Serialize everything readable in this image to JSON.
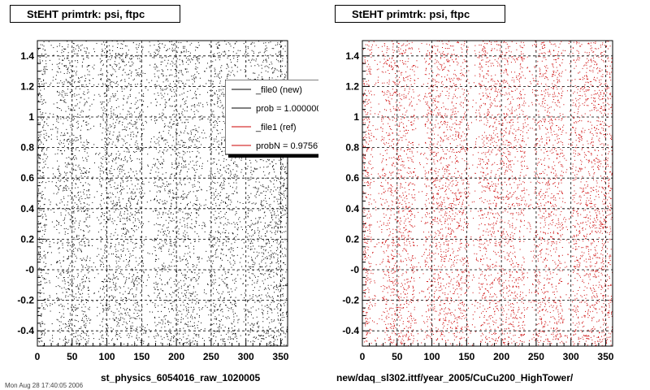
{
  "stamp": "Mon Aug 28 17:40:05 2006",
  "chart_data": [
    {
      "type": "scatter",
      "title": "StEHT primtrk: psi, ftpc",
      "xlabel": "st_physics_6054016_raw_1020005",
      "ylabel": "",
      "xlim": [
        0,
        360
      ],
      "ylim": [
        -0.5,
        1.5
      ],
      "x_ticks": [
        0,
        50,
        100,
        150,
        200,
        250,
        300,
        350
      ],
      "y_ticks": [
        -0.4,
        -0.2,
        -0.0,
        0.2,
        0.4,
        0.6,
        0.8,
        1,
        1.2,
        1.4
      ],
      "x_tick_labels": [
        "0",
        "50",
        "100",
        "150",
        "200",
        "250",
        "300",
        "350"
      ],
      "y_tick_labels": [
        "-0.4",
        "-0.2",
        "-0",
        "0.2",
        "0.4",
        "0.6",
        "0.8",
        "1",
        "1.2",
        "1.4"
      ],
      "grid": true,
      "color": "#000000",
      "point_count": 9000,
      "density_gaps_x": [
        20,
        82,
        160,
        240,
        295
      ],
      "legend": {
        "placement": "top-right",
        "entries": [
          {
            "label": "_file0 (new)",
            "color": "#000000"
          },
          {
            "label": "prob = 1.000000",
            "color": "#000000"
          },
          {
            "label": "_file1 (ref)",
            "color": "#cc0000"
          },
          {
            "label": "probN = 0.975675",
            "color": "#cc0000"
          }
        ]
      }
    },
    {
      "type": "scatter",
      "title": "StEHT primtrk: psi, ftpc",
      "xlabel": "new/daq_sl302.ittf/year_2005/CuCu200_HighTower/",
      "ylabel": "",
      "xlim": [
        0,
        360
      ],
      "ylim": [
        -0.5,
        1.5
      ],
      "x_ticks": [
        0,
        50,
        100,
        150,
        200,
        250,
        300,
        350
      ],
      "y_ticks": [
        -0.4,
        -0.2,
        -0.0,
        0.2,
        0.4,
        0.6,
        0.8,
        1,
        1.2,
        1.4
      ],
      "x_tick_labels": [
        "0",
        "50",
        "100",
        "150",
        "200",
        "250",
        "300",
        "350"
      ],
      "y_tick_labels": [
        "-0.4",
        "-0.2",
        "-0",
        "0.2",
        "0.4",
        "0.6",
        "0.8",
        "1",
        "1.2",
        "1.4"
      ],
      "grid": true,
      "color": "#cc0000",
      "point_count": 9000,
      "density_gaps_x": [
        20,
        82,
        160,
        240,
        295
      ]
    }
  ]
}
